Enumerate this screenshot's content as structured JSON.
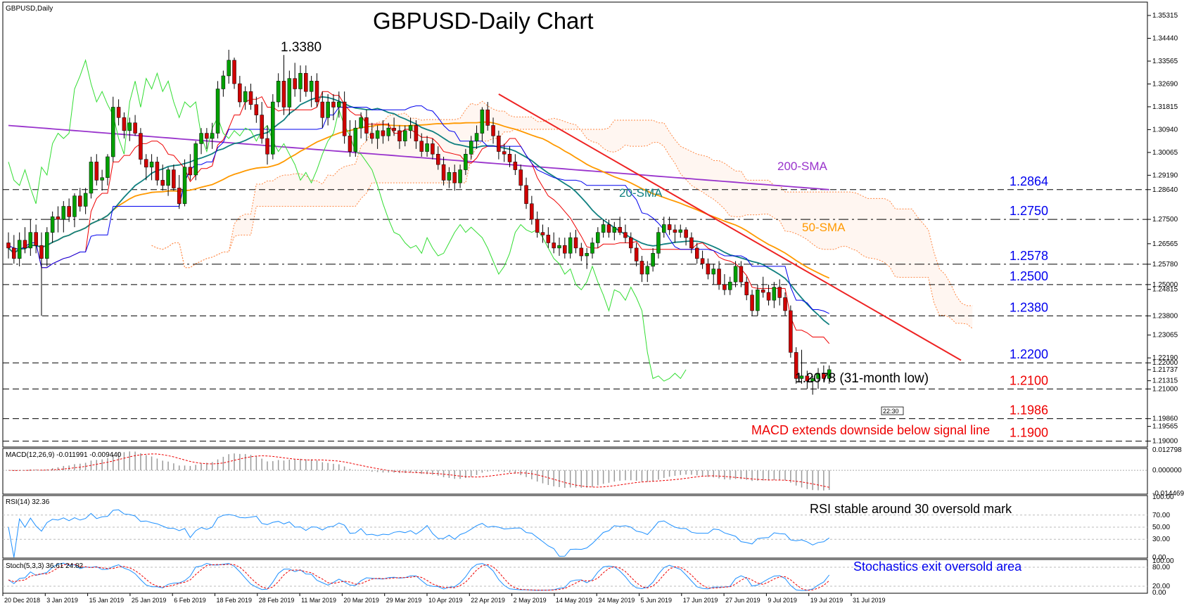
{
  "window": {
    "symbol_label": "GBPUSD,Daily"
  },
  "chart_data": {
    "type": "candlestick",
    "title": "GBPUSD-Daily Chart",
    "price_ylim": [
      1.188,
      1.358
    ],
    "price_ticks": [
      "1.35315",
      "1.34440",
      "1.33565",
      "1.32690",
      "1.31815",
      "1.30940",
      "1.30065",
      "1.29190",
      "1.28640",
      "1.27500",
      "1.26565",
      "1.25780",
      "1.25000",
      "1.24815",
      "1.23800",
      "1.23065",
      "1.22190",
      "1.22000",
      "1.21737",
      "1.21315",
      "1.21000",
      "1.19860",
      "1.19565",
      "1.19000"
    ],
    "x_ticks": [
      "20 Dec 2018",
      "3 Jan 2019",
      "15 Jan 2019",
      "25 Jan 2019",
      "6 Feb 2019",
      "18 Feb 2019",
      "28 Feb 2019",
      "11 Mar 2019",
      "20 Mar 2019",
      "29 Mar 2019",
      "10 Apr 2019",
      "22 Apr 2019",
      "2 May 2019",
      "14 May 2019",
      "24 May 2019",
      "5 Jun 2019",
      "17 Jun 2019",
      "27 Jun 2019",
      "9 Jul 2019",
      "19 Jul 2019",
      "31 Jul 2019"
    ],
    "candles": [
      [
        1.266,
        1.27,
        1.26,
        1.264
      ],
      [
        1.264,
        1.269,
        1.258,
        1.26
      ],
      [
        1.26,
        1.27,
        1.257,
        1.267
      ],
      [
        1.267,
        1.272,
        1.262,
        1.264
      ],
      [
        1.264,
        1.275,
        1.261,
        1.27
      ],
      [
        1.27,
        1.273,
        1.262,
        1.265
      ],
      [
        1.265,
        1.27,
        1.238,
        1.26
      ],
      [
        1.26,
        1.272,
        1.257,
        1.27
      ],
      [
        1.27,
        1.278,
        1.266,
        1.276
      ],
      [
        1.276,
        1.28,
        1.27,
        1.275
      ],
      [
        1.275,
        1.282,
        1.27,
        1.28
      ],
      [
        1.28,
        1.283,
        1.274,
        1.276
      ],
      [
        1.276,
        1.285,
        1.272,
        1.284
      ],
      [
        1.284,
        1.287,
        1.278,
        1.28
      ],
      [
        1.28,
        1.287,
        1.277,
        1.285
      ],
      [
        1.285,
        1.299,
        1.283,
        1.297
      ],
      [
        1.297,
        1.3,
        1.288,
        1.29
      ],
      [
        1.29,
        1.294,
        1.286,
        1.291
      ],
      [
        1.291,
        1.3,
        1.288,
        1.299
      ],
      [
        1.299,
        1.322,
        1.297,
        1.318
      ],
      [
        1.318,
        1.321,
        1.311,
        1.314
      ],
      [
        1.314,
        1.316,
        1.306,
        1.309
      ],
      [
        1.309,
        1.314,
        1.305,
        1.312
      ],
      [
        1.312,
        1.315,
        1.307,
        1.308
      ],
      [
        1.308,
        1.31,
        1.296,
        1.298
      ],
      [
        1.298,
        1.3,
        1.29,
        1.295
      ],
      [
        1.295,
        1.3,
        1.29,
        1.297
      ],
      [
        1.297,
        1.299,
        1.288,
        1.29
      ],
      [
        1.29,
        1.296,
        1.286,
        1.288
      ],
      [
        1.288,
        1.295,
        1.284,
        1.294
      ],
      [
        1.294,
        1.296,
        1.286,
        1.287
      ],
      [
        1.287,
        1.292,
        1.279,
        1.281
      ],
      [
        1.281,
        1.298,
        1.28,
        1.295
      ],
      [
        1.295,
        1.3,
        1.29,
        1.292
      ],
      [
        1.292,
        1.305,
        1.29,
        1.304
      ],
      [
        1.304,
        1.31,
        1.3,
        1.308
      ],
      [
        1.308,
        1.31,
        1.302,
        1.306
      ],
      [
        1.306,
        1.312,
        1.302,
        1.308
      ],
      [
        1.308,
        1.328,
        1.306,
        1.325
      ],
      [
        1.325,
        1.332,
        1.322,
        1.33
      ],
      [
        1.33,
        1.34,
        1.327,
        1.336
      ],
      [
        1.336,
        1.337,
        1.325,
        1.327
      ],
      [
        1.327,
        1.33,
        1.318,
        1.32
      ],
      [
        1.32,
        1.326,
        1.317,
        1.324
      ],
      [
        1.324,
        1.327,
        1.317,
        1.319
      ],
      [
        1.319,
        1.322,
        1.312,
        1.315
      ],
      [
        1.315,
        1.32,
        1.304,
        1.306
      ],
      [
        1.306,
        1.311,
        1.296,
        1.3
      ],
      [
        1.3,
        1.323,
        1.298,
        1.32
      ],
      [
        1.32,
        1.331,
        1.318,
        1.328
      ],
      [
        1.328,
        1.338,
        1.315,
        1.318
      ],
      [
        1.318,
        1.332,
        1.315,
        1.329
      ],
      [
        1.329,
        1.335,
        1.322,
        1.325
      ],
      [
        1.325,
        1.334,
        1.32,
        1.331
      ],
      [
        1.331,
        1.334,
        1.322,
        1.324
      ],
      [
        1.324,
        1.33,
        1.318,
        1.328
      ],
      [
        1.328,
        1.331,
        1.318,
        1.32
      ],
      [
        1.32,
        1.324,
        1.31,
        1.314
      ],
      [
        1.314,
        1.323,
        1.311,
        1.32
      ],
      [
        1.32,
        1.323,
        1.313,
        1.318
      ],
      [
        1.318,
        1.324,
        1.314,
        1.32
      ],
      [
        1.32,
        1.324,
        1.304,
        1.307
      ],
      [
        1.307,
        1.313,
        1.299,
        1.301
      ],
      [
        1.301,
        1.313,
        1.299,
        1.31
      ],
      [
        1.31,
        1.316,
        1.306,
        1.314
      ],
      [
        1.314,
        1.317,
        1.305,
        1.308
      ],
      [
        1.308,
        1.312,
        1.304,
        1.306
      ],
      [
        1.306,
        1.311,
        1.302,
        1.309
      ],
      [
        1.309,
        1.313,
        1.304,
        1.307
      ],
      [
        1.307,
        1.312,
        1.305,
        1.31
      ],
      [
        1.31,
        1.314,
        1.307,
        1.309
      ],
      [
        1.309,
        1.311,
        1.302,
        1.305
      ],
      [
        1.305,
        1.311,
        1.303,
        1.309
      ],
      [
        1.309,
        1.314,
        1.306,
        1.311
      ],
      [
        1.311,
        1.313,
        1.302,
        1.305
      ],
      [
        1.305,
        1.308,
        1.299,
        1.301
      ],
      [
        1.301,
        1.307,
        1.299,
        1.304
      ],
      [
        1.304,
        1.306,
        1.298,
        1.3
      ],
      [
        1.3,
        1.303,
        1.294,
        1.296
      ],
      [
        1.296,
        1.299,
        1.288,
        1.29
      ],
      [
        1.29,
        1.295,
        1.287,
        1.293
      ],
      [
        1.293,
        1.296,
        1.286,
        1.289
      ],
      [
        1.289,
        1.296,
        1.287,
        1.294
      ],
      [
        1.294,
        1.302,
        1.292,
        1.3
      ],
      [
        1.3,
        1.307,
        1.298,
        1.305
      ],
      [
        1.305,
        1.311,
        1.302,
        1.308
      ],
      [
        1.308,
        1.318,
        1.305,
        1.317
      ],
      [
        1.317,
        1.32,
        1.309,
        1.311
      ],
      [
        1.311,
        1.314,
        1.304,
        1.307
      ],
      [
        1.307,
        1.309,
        1.298,
        1.301
      ],
      [
        1.301,
        1.304,
        1.297,
        1.3
      ],
      [
        1.3,
        1.303,
        1.295,
        1.297
      ],
      [
        1.297,
        1.3,
        1.292,
        1.294
      ],
      [
        1.294,
        1.296,
        1.286,
        1.288
      ],
      [
        1.288,
        1.291,
        1.279,
        1.281
      ],
      [
        1.281,
        1.284,
        1.273,
        1.275
      ],
      [
        1.275,
        1.278,
        1.268,
        1.27
      ],
      [
        1.27,
        1.273,
        1.266,
        1.269
      ],
      [
        1.269,
        1.272,
        1.264,
        1.266
      ],
      [
        1.266,
        1.27,
        1.262,
        1.264
      ],
      [
        1.264,
        1.268,
        1.261,
        1.265
      ],
      [
        1.265,
        1.268,
        1.26,
        1.262
      ],
      [
        1.262,
        1.27,
        1.26,
        1.268
      ],
      [
        1.268,
        1.271,
        1.262,
        1.264
      ],
      [
        1.264,
        1.266,
        1.259,
        1.261
      ],
      [
        1.261,
        1.264,
        1.256,
        1.262
      ],
      [
        1.262,
        1.268,
        1.26,
        1.266
      ],
      [
        1.266,
        1.272,
        1.264,
        1.27
      ],
      [
        1.27,
        1.275,
        1.268,
        1.273
      ],
      [
        1.273,
        1.275,
        1.268,
        1.27
      ],
      [
        1.27,
        1.274,
        1.267,
        1.272
      ],
      [
        1.272,
        1.276,
        1.269,
        1.27
      ],
      [
        1.27,
        1.273,
        1.266,
        1.268
      ],
      [
        1.268,
        1.27,
        1.262,
        1.264
      ],
      [
        1.264,
        1.266,
        1.257,
        1.259
      ],
      [
        1.259,
        1.261,
        1.251,
        1.254
      ],
      [
        1.254,
        1.259,
        1.251,
        1.257
      ],
      [
        1.257,
        1.264,
        1.255,
        1.262
      ],
      [
        1.262,
        1.272,
        1.26,
        1.27
      ],
      [
        1.27,
        1.276,
        1.268,
        1.273
      ],
      [
        1.273,
        1.276,
        1.269,
        1.271
      ],
      [
        1.271,
        1.273,
        1.266,
        1.27
      ],
      [
        1.27,
        1.273,
        1.268,
        1.271
      ],
      [
        1.271,
        1.272,
        1.265,
        1.268
      ],
      [
        1.268,
        1.27,
        1.262,
        1.264
      ],
      [
        1.264,
        1.266,
        1.258,
        1.26
      ],
      [
        1.26,
        1.263,
        1.256,
        1.258
      ],
      [
        1.258,
        1.26,
        1.252,
        1.254
      ],
      [
        1.254,
        1.258,
        1.25,
        1.256
      ],
      [
        1.256,
        1.259,
        1.248,
        1.25
      ],
      [
        1.25,
        1.254,
        1.246,
        1.248
      ],
      [
        1.248,
        1.253,
        1.246,
        1.251
      ],
      [
        1.251,
        1.259,
        1.249,
        1.257
      ],
      [
        1.257,
        1.259,
        1.249,
        1.251
      ],
      [
        1.251,
        1.253,
        1.244,
        1.246
      ],
      [
        1.246,
        1.248,
        1.238,
        1.24
      ],
      [
        1.24,
        1.25,
        1.238,
        1.248
      ],
      [
        1.248,
        1.253,
        1.245,
        1.247
      ],
      [
        1.247,
        1.25,
        1.242,
        1.244
      ],
      [
        1.244,
        1.251,
        1.241,
        1.249
      ],
      [
        1.249,
        1.252,
        1.242,
        1.245
      ],
      [
        1.245,
        1.247,
        1.238,
        1.24
      ],
      [
        1.24,
        1.242,
        1.222,
        1.224
      ],
      [
        1.224,
        1.226,
        1.212,
        1.214
      ],
      [
        1.214,
        1.225,
        1.212,
        1.215
      ],
      [
        1.215,
        1.217,
        1.21,
        1.213
      ],
      [
        1.213,
        1.215,
        1.2078,
        1.214
      ],
      [
        1.214,
        1.218,
        1.21,
        1.216
      ],
      [
        1.216,
        1.219,
        1.213,
        1.214
      ],
      [
        1.214,
        1.219,
        1.212,
        1.2174
      ]
    ],
    "sma_200": [
      1.311,
      1.2864
    ],
    "levels": [
      {
        "label": "1.2864",
        "value": 1.2864,
        "color": "#0000ee",
        "dash": "9,5"
      },
      {
        "label": "1.2750",
        "value": 1.275,
        "color": "#0000ee",
        "dash": "14,5,3,5"
      },
      {
        "label": "1.2578",
        "value": 1.2578,
        "color": "#0000ee",
        "dash": "14,5,3,5"
      },
      {
        "label": "1.2500",
        "value": 1.25,
        "color": "#0000ee",
        "dash": "9,5"
      },
      {
        "label": "1.2380",
        "value": 1.238,
        "color": "#0000ee",
        "dash": "9,5"
      },
      {
        "label": "1.2200",
        "value": 1.22,
        "color": "#0000ee",
        "dash": "9,5"
      },
      {
        "label": "1.2100",
        "value": 1.21,
        "color": "#ee0000",
        "dash": "9,5"
      },
      {
        "label": "1.1986",
        "value": 1.1986,
        "color": "#ee0000",
        "dash": "9,5"
      },
      {
        "label": "1.1900",
        "value": 1.19,
        "color": "#ee0000",
        "dash": "9,5"
      }
    ],
    "annotations": {
      "high": "1.3380",
      "low": "1.2078 (31-month low)",
      "sma200": "200-SMA",
      "sma20": "20-SMA",
      "sma50": "50-SMA",
      "current_price": "1.21737",
      "time_box": "22:30"
    },
    "colors": {
      "bull": "#00a000",
      "bear": "#d00000",
      "sma200": "#9933cc",
      "sma50": "#ff9900",
      "sma20": "#108080",
      "tenkan": "#ee0000",
      "kijun": "#0000ee",
      "chikou": "#33dd33",
      "cloud": "#ff8844",
      "trendline": "#ee2222"
    },
    "macd": {
      "label": "MACD(12,26,9) -0.011991 -0.009440",
      "ticks": [
        "0.012798",
        "0.000000",
        "-0.014469"
      ],
      "ylim": [
        -0.0145,
        0.0128
      ],
      "annotation": "MACD extends downside below signal line"
    },
    "rsi": {
      "label": "RSI(14) 32.36",
      "ticks": [
        "100.00",
        "70.00",
        "50.00",
        "30.00",
        "0.00"
      ],
      "ylim": [
        0,
        100
      ],
      "annotation": "RSI stable around 30 oversold mark"
    },
    "stoch": {
      "label": "Stoch(5,3,3) 36.61 24.82",
      "ticks": [
        "100.00",
        "80.00",
        "20.00",
        "0.00"
      ],
      "ylim": [
        0,
        100
      ],
      "annotation": "Stochastics exit oversold area"
    }
  }
}
